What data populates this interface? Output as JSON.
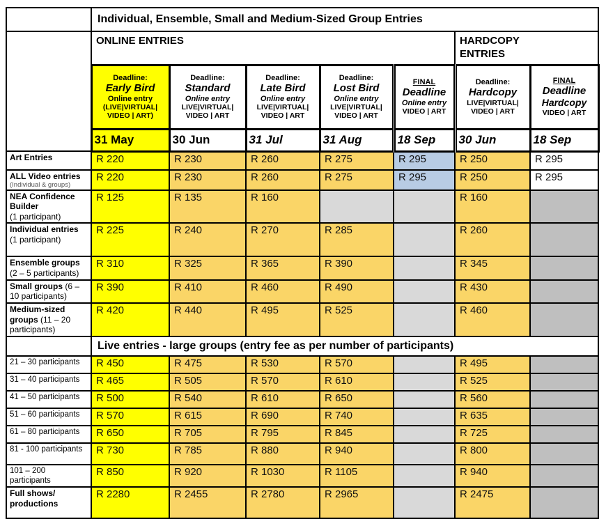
{
  "title": "Individual, Ensemble, Small and Medium-Sized Group Entries",
  "sections": {
    "online": "ONLINE ENTRIES",
    "hardcopy": "HARDCOPY ENTRIES"
  },
  "colors": {
    "early_bird_yellow": "#FFFF00",
    "fee_gold": "#FAD567",
    "final_online_blue": "#B8CCE4",
    "na_light_gray": "#D9D9D9",
    "na_dark_gray": "#BFBFBF",
    "border_black": "#000000"
  },
  "columns": [
    {
      "line1": "Deadline:",
      "name": "Early Bird",
      "line3": "Online entry",
      "line4": "(LIVE|VIRTUAL|",
      "line5": "VIDEO | ART)",
      "date": "31 May"
    },
    {
      "line1": "Deadline:",
      "name": "Standard",
      "line3": "Online entry",
      "line4": "LIVE|VIRTUAL|",
      "line5": "VIDEO | ART",
      "date": "30 Jun"
    },
    {
      "line1": "Deadline:",
      "name": "Late Bird",
      "line3": "Online entry",
      "line4": "LIVE|VIRTUAL|",
      "line5": "VIDEO | ART",
      "date": "31 Jul"
    },
    {
      "line1": "Deadline:",
      "name": "Lost Bird",
      "line3": "Online entry",
      "line4": "LIVE|VIRTUAL|",
      "line5": "VIDEO | ART",
      "date": "31 Aug"
    },
    {
      "line1": "FINAL",
      "name": "Deadline",
      "line3": "Online entry",
      "line4": "",
      "line5": "VIDEO | ART",
      "date": "18 Sep"
    },
    {
      "line1": "Deadline:",
      "name": "Hardcopy",
      "line3": "",
      "line4": "LIVE|VIRTUAL|",
      "line5": "VIDEO | ART",
      "date": "30 Jun"
    },
    {
      "line1": "FINAL",
      "name": "Deadline",
      "line3": "Hardcopy",
      "line4": "",
      "line5": "VIDEO | ART",
      "date": "18 Sep"
    }
  ],
  "body": {
    "banner": "Live entries - large groups (entry fee as per number of participants)",
    "top_rows": [
      {
        "label": {
          "bold": "Art Entries",
          "rest": "",
          "tiny": "",
          "rest_block": false
        },
        "plain": false,
        "cells": [
          {
            "t": "R 220",
            "bg": "y"
          },
          {
            "t": "R 230",
            "bg": "g"
          },
          {
            "t": "R 260",
            "bg": "g"
          },
          {
            "t": "R 275",
            "bg": "g"
          },
          {
            "t": "R 295",
            "bg": "b"
          },
          {
            "t": "R 250",
            "bg": "g"
          },
          {
            "t": "R 295",
            "bg": "w"
          }
        ]
      },
      {
        "label": {
          "bold": "ALL Video entries",
          "rest": "",
          "tiny": "(Individual & groups)",
          "rest_block": false
        },
        "plain": false,
        "cells": [
          {
            "t": "R 220",
            "bg": "y"
          },
          {
            "t": "R 230",
            "bg": "g"
          },
          {
            "t": "R 260",
            "bg": "g"
          },
          {
            "t": "R 275",
            "bg": "g"
          },
          {
            "t": "R 295",
            "bg": "b"
          },
          {
            "t": "R 250",
            "bg": "g"
          },
          {
            "t": "R 295",
            "bg": "w"
          }
        ]
      },
      {
        "label": {
          "bold": "NEA Confidence Builder",
          "rest": "(1 participant)",
          "tiny": "",
          "rest_block": true
        },
        "plain": false,
        "cells": [
          {
            "t": "R 125",
            "bg": "y"
          },
          {
            "t": "R 135",
            "bg": "g"
          },
          {
            "t": "R 160",
            "bg": "g"
          },
          {
            "t": "",
            "bg": "lg"
          },
          {
            "t": "",
            "bg": "lg"
          },
          {
            "t": "R 160",
            "bg": "g"
          },
          {
            "t": "",
            "bg": "dg"
          }
        ]
      },
      {
        "label": {
          "bold": "Individual entries",
          "rest": "(1 participant)",
          "tiny": "",
          "rest_block": true
        },
        "plain": false,
        "cells": [
          {
            "t": "R 225",
            "bg": "y"
          },
          {
            "t": "R 240",
            "bg": "g"
          },
          {
            "t": "R 270",
            "bg": "g"
          },
          {
            "t": "R 285",
            "bg": "g"
          },
          {
            "t": "",
            "bg": "lg"
          },
          {
            "t": "R 260",
            "bg": "g"
          },
          {
            "t": "",
            "bg": "dg"
          }
        ]
      },
      {
        "label": {
          "bold": "Ensemble groups",
          "rest": "(2 – 5 participants)",
          "tiny": "",
          "rest_block": true
        },
        "plain": false,
        "cells": [
          {
            "t": "R 310",
            "bg": "y"
          },
          {
            "t": "R 325",
            "bg": "g"
          },
          {
            "t": "R 365",
            "bg": "g"
          },
          {
            "t": "R 390",
            "bg": "g"
          },
          {
            "t": "",
            "bg": "lg"
          },
          {
            "t": "R 345",
            "bg": "g"
          },
          {
            "t": "",
            "bg": "dg"
          }
        ]
      },
      {
        "label": {
          "bold": "Small groups",
          "rest": "(6 – 10 participants)",
          "tiny": "",
          "rest_block": false
        },
        "plain": false,
        "cells": [
          {
            "t": "R 390",
            "bg": "y"
          },
          {
            "t": "R 410",
            "bg": "g"
          },
          {
            "t": "R 460",
            "bg": "g"
          },
          {
            "t": "R 490",
            "bg": "g"
          },
          {
            "t": "",
            "bg": "lg"
          },
          {
            "t": "R 430",
            "bg": "g"
          },
          {
            "t": "",
            "bg": "dg"
          }
        ]
      },
      {
        "label": {
          "bold": "Medium-sized groups",
          "rest": "(11 – 20 participants)",
          "tiny": "",
          "rest_block": false
        },
        "plain": false,
        "cells": [
          {
            "t": "R 420",
            "bg": "y"
          },
          {
            "t": "R 440",
            "bg": "g"
          },
          {
            "t": "R 495",
            "bg": "g"
          },
          {
            "t": "R 525",
            "bg": "g"
          },
          {
            "t": "",
            "bg": "lg"
          },
          {
            "t": "R 460",
            "bg": "g"
          },
          {
            "t": "",
            "bg": "dg"
          }
        ]
      }
    ],
    "bottom_rows": [
      {
        "label": {
          "bold": "21 – 30 participants",
          "rest": "",
          "tiny": "",
          "rest_block": false
        },
        "plain": true,
        "cells": [
          {
            "t": "R 450",
            "bg": "y"
          },
          {
            "t": "R 475",
            "bg": "g"
          },
          {
            "t": "R 530",
            "bg": "g"
          },
          {
            "t": "R 570",
            "bg": "g"
          },
          {
            "t": "",
            "bg": "lg"
          },
          {
            "t": "R 495",
            "bg": "g"
          },
          {
            "t": "",
            "bg": "dg"
          }
        ]
      },
      {
        "label": {
          "bold": "31 – 40 participants",
          "rest": "",
          "tiny": "",
          "rest_block": false
        },
        "plain": true,
        "cells": [
          {
            "t": "R 465",
            "bg": "y"
          },
          {
            "t": "R 505",
            "bg": "g"
          },
          {
            "t": "R 570",
            "bg": "g"
          },
          {
            "t": "R 610",
            "bg": "g"
          },
          {
            "t": "",
            "bg": "lg"
          },
          {
            "t": "R 525",
            "bg": "g"
          },
          {
            "t": "",
            "bg": "dg"
          }
        ]
      },
      {
        "label": {
          "bold": "41 – 50 participants",
          "rest": "",
          "tiny": "",
          "rest_block": false
        },
        "plain": true,
        "cells": [
          {
            "t": "R 500",
            "bg": "y"
          },
          {
            "t": "R 540",
            "bg": "g"
          },
          {
            "t": "R 610",
            "bg": "g"
          },
          {
            "t": "R 650",
            "bg": "g"
          },
          {
            "t": "",
            "bg": "lg"
          },
          {
            "t": "R 560",
            "bg": "g"
          },
          {
            "t": "",
            "bg": "dg"
          }
        ]
      },
      {
        "label": {
          "bold": "51 – 60 participants",
          "rest": "",
          "tiny": "",
          "rest_block": false
        },
        "plain": true,
        "cells": [
          {
            "t": "R 570",
            "bg": "y"
          },
          {
            "t": "R 615",
            "bg": "g"
          },
          {
            "t": "R 690",
            "bg": "g"
          },
          {
            "t": "R 740",
            "bg": "g"
          },
          {
            "t": "",
            "bg": "lg"
          },
          {
            "t": "R 635",
            "bg": "g"
          },
          {
            "t": "",
            "bg": "dg"
          }
        ]
      },
      {
        "label": {
          "bold": "61 – 80 participants",
          "rest": "",
          "tiny": "",
          "rest_block": false
        },
        "plain": true,
        "cells": [
          {
            "t": "R 650",
            "bg": "y"
          },
          {
            "t": "R 705",
            "bg": "g"
          },
          {
            "t": "R 795",
            "bg": "g"
          },
          {
            "t": "R 845",
            "bg": "g"
          },
          {
            "t": "",
            "bg": "lg"
          },
          {
            "t": "R 725",
            "bg": "g"
          },
          {
            "t": "",
            "bg": "dg"
          }
        ]
      },
      {
        "label": {
          "bold": "81 - 100 participants",
          "rest": "",
          "tiny": "",
          "rest_block": false
        },
        "plain": true,
        "cells": [
          {
            "t": "R 730",
            "bg": "y"
          },
          {
            "t": "R 785",
            "bg": "g"
          },
          {
            "t": "R 880",
            "bg": "g"
          },
          {
            "t": "R 940",
            "bg": "g"
          },
          {
            "t": "",
            "bg": "lg"
          },
          {
            "t": "R 800",
            "bg": "g"
          },
          {
            "t": "",
            "bg": "dg"
          }
        ]
      },
      {
        "label": {
          "bold": "101 – 200 participants",
          "rest": "",
          "tiny": "",
          "rest_block": false
        },
        "plain": true,
        "cells": [
          {
            "t": "R 850",
            "bg": "y"
          },
          {
            "t": "R 920",
            "bg": "g"
          },
          {
            "t": "R 1030",
            "bg": "g"
          },
          {
            "t": "R 1105",
            "bg": "g"
          },
          {
            "t": "",
            "bg": "lg"
          },
          {
            "t": "R 940",
            "bg": "g"
          },
          {
            "t": "",
            "bg": "dg"
          }
        ]
      },
      {
        "label": {
          "bold": "Full shows/ productions",
          "rest": "",
          "tiny": "",
          "rest_block": false
        },
        "plain": false,
        "cells": [
          {
            "t": "R 2280",
            "bg": "y"
          },
          {
            "t": "R 2455",
            "bg": "g"
          },
          {
            "t": "R 2780",
            "bg": "g"
          },
          {
            "t": "R 2965",
            "bg": "g"
          },
          {
            "t": "",
            "bg": "lg"
          },
          {
            "t": "R 2475",
            "bg": "g"
          },
          {
            "t": "",
            "bg": "dg"
          }
        ]
      }
    ]
  }
}
